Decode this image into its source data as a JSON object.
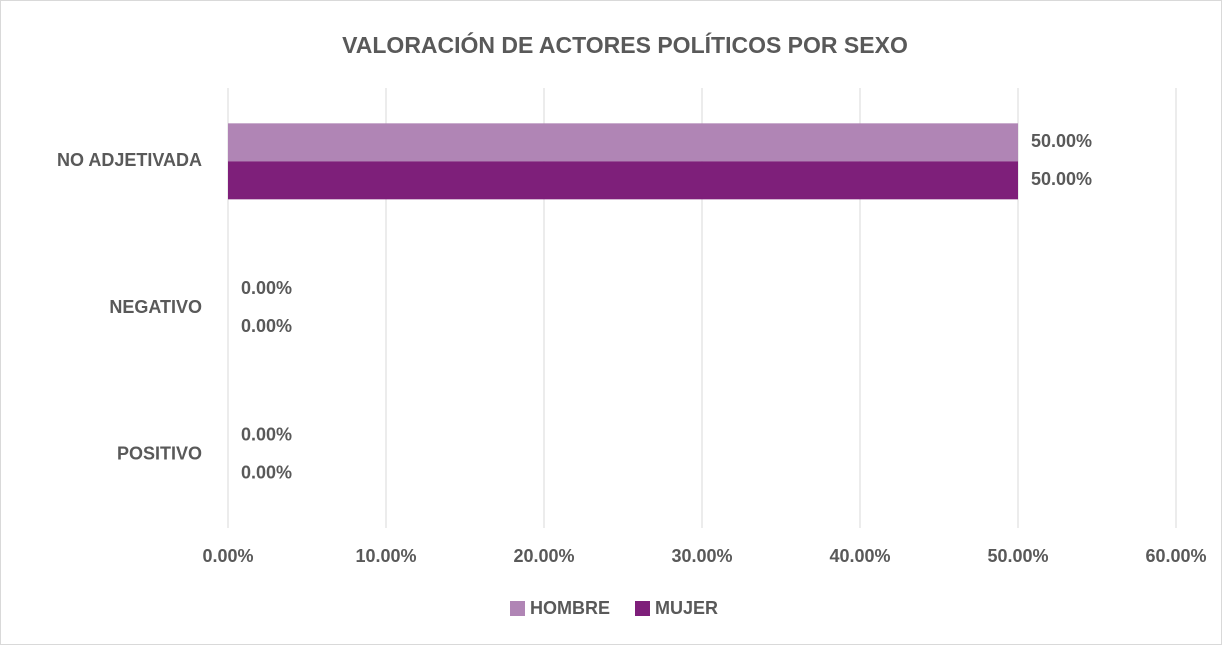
{
  "chart_data": {
    "type": "hbar",
    "title": "VALORACIÓN DE ACTORES POLÍTICOS POR SEXO",
    "categories": [
      "NO ADJETIVADA",
      "NEGATIVO",
      "POSITIVO"
    ],
    "series": [
      {
        "name": "HOMBRE",
        "color": "#b085b5",
        "values": [
          50,
          0,
          0
        ],
        "value_labels": [
          "50.00%",
          "0.00%",
          "0.00%"
        ]
      },
      {
        "name": "MUJER",
        "color": "#7e1f7a",
        "values": [
          50,
          0,
          0
        ],
        "value_labels": [
          "50.00%",
          "0.00%",
          "0.00%"
        ]
      }
    ],
    "xlim": [
      0,
      60
    ],
    "xticks": [
      {
        "value": 0,
        "label": "0.00%"
      },
      {
        "value": 10,
        "label": "10.00%"
      },
      {
        "value": 20,
        "label": "20.00%"
      },
      {
        "value": 30,
        "label": "30.00%"
      },
      {
        "value": 40,
        "label": "40.00%"
      },
      {
        "value": 50,
        "label": "50.00%"
      },
      {
        "value": 60,
        "label": "60.00%"
      }
    ],
    "grid": true,
    "legend": "bottom"
  }
}
